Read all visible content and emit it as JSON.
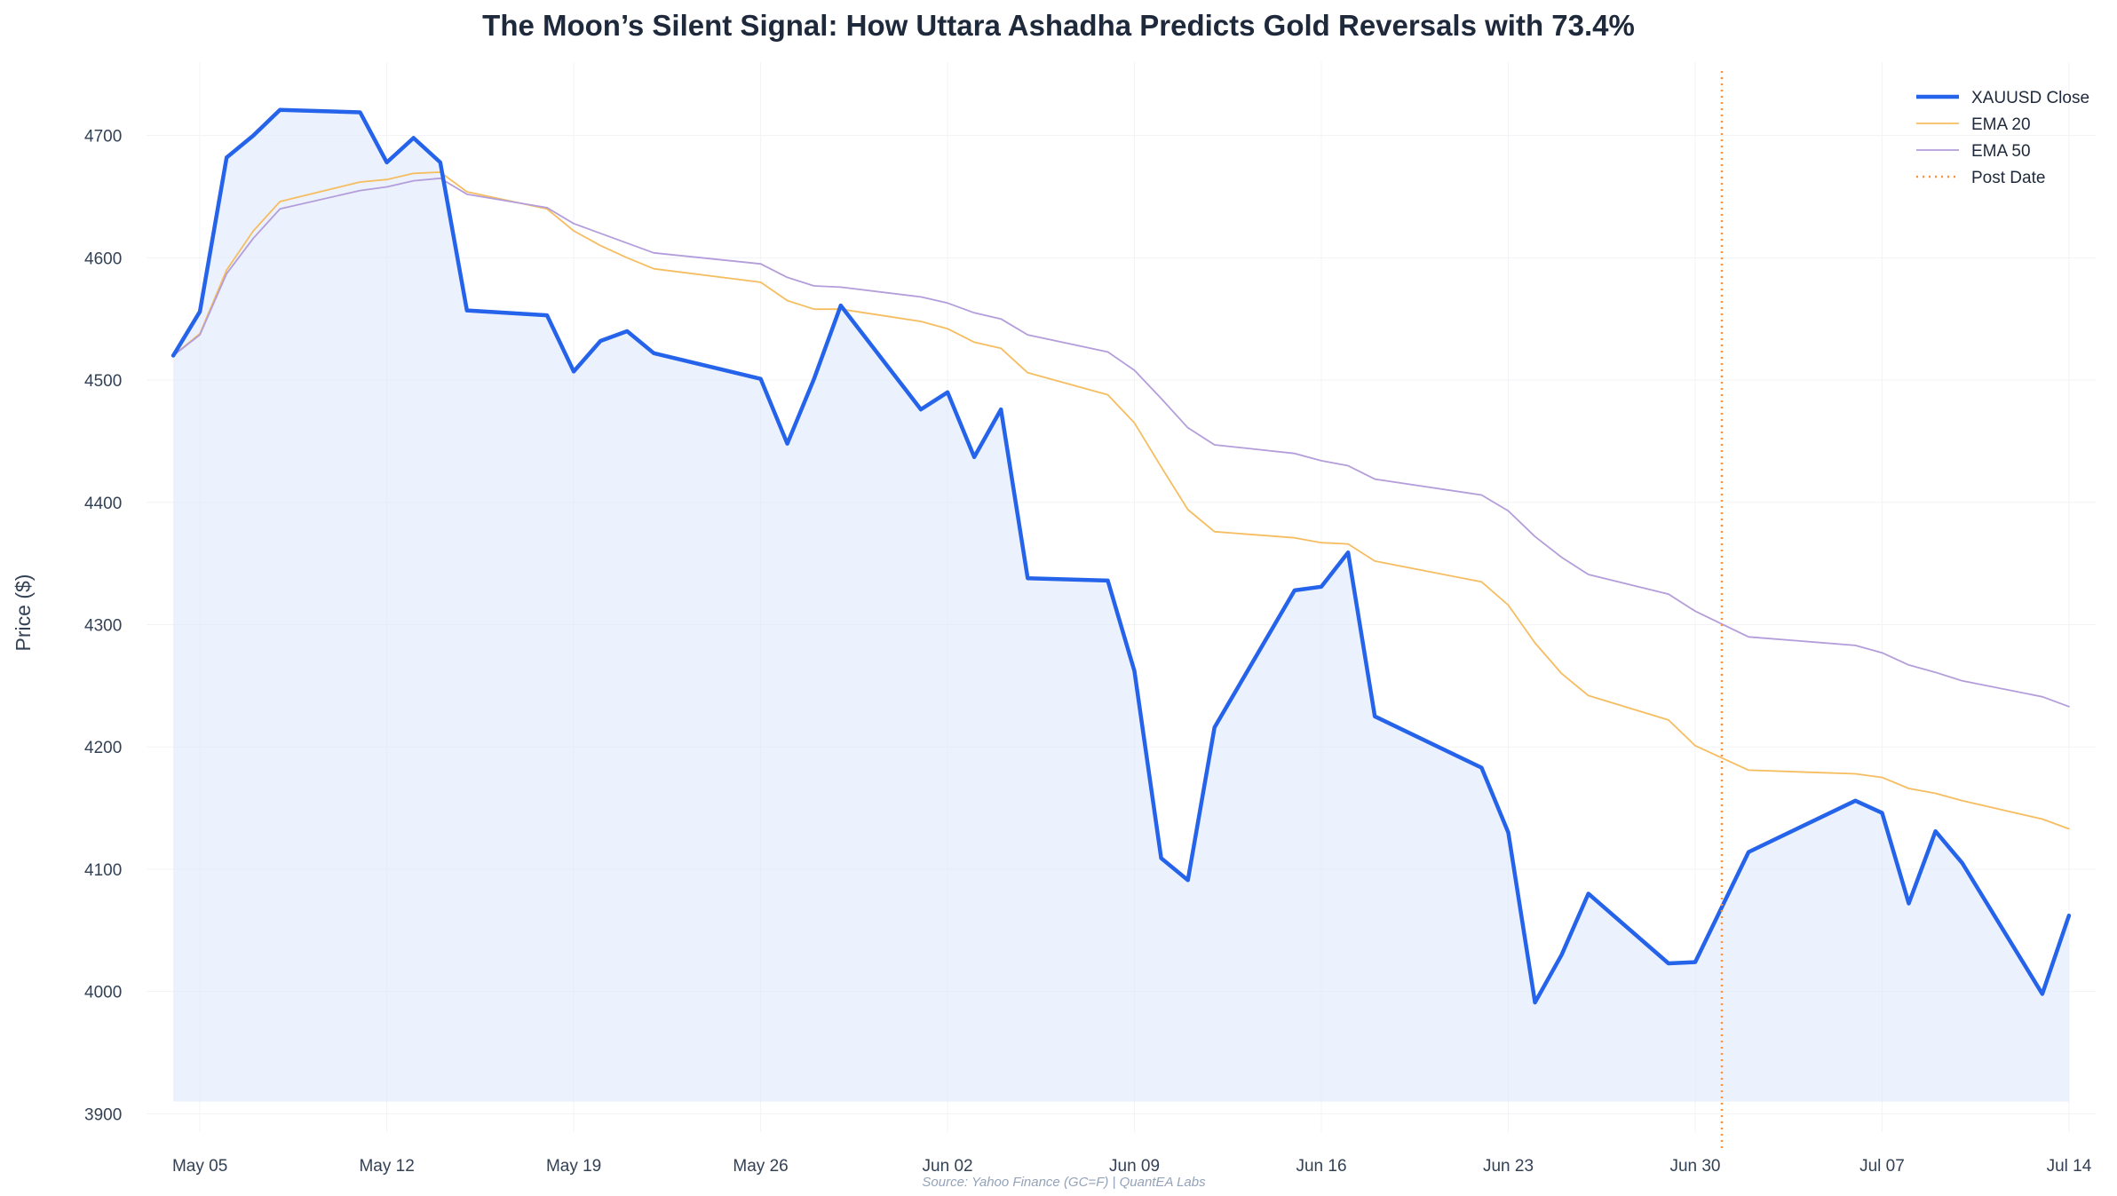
{
  "chart_data": {
    "type": "line",
    "title": "The Moon’s Silent Signal: How Uttara Ashadha Predicts Gold Reversals with 73.4%",
    "ylabel": "Price ($)",
    "xlabel": "",
    "ylim": [
      3885,
      4760
    ],
    "yticks": [
      3900,
      4000,
      4100,
      4200,
      4300,
      4400,
      4500,
      4600,
      4700
    ],
    "xlim": [
      "2025-05-03",
      "2025-07-15"
    ],
    "xticks": [
      {
        "date": "2025-05-05",
        "label": "May 05"
      },
      {
        "date": "2025-05-12",
        "label": "May 12"
      },
      {
        "date": "2025-05-19",
        "label": "May 19"
      },
      {
        "date": "2025-05-26",
        "label": "May 26"
      },
      {
        "date": "2025-06-02",
        "label": "Jun 02"
      },
      {
        "date": "2025-06-09",
        "label": "Jun 09"
      },
      {
        "date": "2025-06-16",
        "label": "Jun 16"
      },
      {
        "date": "2025-06-23",
        "label": "Jun 23"
      },
      {
        "date": "2025-06-30",
        "label": "Jun 30"
      },
      {
        "date": "2025-07-07",
        "label": "Jul 07"
      },
      {
        "date": "2025-07-14",
        "label": "Jul 14"
      }
    ],
    "fill_baseline": 3910,
    "grid": true,
    "legend_position": "top-right",
    "dates": [
      "2025-05-04",
      "2025-05-05",
      "2025-05-06",
      "2025-05-07",
      "2025-05-08",
      "2025-05-11",
      "2025-05-12",
      "2025-05-13",
      "2025-05-14",
      "2025-05-15",
      "2025-05-18",
      "2025-05-19",
      "2025-05-20",
      "2025-05-21",
      "2025-05-22",
      "2025-05-26",
      "2025-05-27",
      "2025-05-28",
      "2025-05-29",
      "2025-06-01",
      "2025-06-02",
      "2025-06-03",
      "2025-06-04",
      "2025-06-05",
      "2025-06-08",
      "2025-06-09",
      "2025-06-10",
      "2025-06-11",
      "2025-06-12",
      "2025-06-15",
      "2025-06-16",
      "2025-06-17",
      "2025-06-18",
      "2025-06-22",
      "2025-06-23",
      "2025-06-24",
      "2025-06-25",
      "2025-06-26",
      "2025-06-29",
      "2025-06-30",
      "2025-07-02",
      "2025-07-06",
      "2025-07-07",
      "2025-07-08",
      "2025-07-09",
      "2025-07-10",
      "2025-07-13",
      "2025-07-14"
    ],
    "series": [
      {
        "name": "XAUUSD Close",
        "color": "#2563eb",
        "width": 4.5,
        "values": [
          4520,
          4556,
          4682,
          4700,
          4721,
          4719,
          4678,
          4698,
          4678,
          4557,
          4553,
          4507,
          4532,
          4540,
          4522,
          4501,
          4448,
          4501,
          4561,
          4476,
          4490,
          4437,
          4476,
          4338,
          4336,
          4262,
          4109,
          4091,
          4216,
          4328,
          4331,
          4359,
          4225,
          4183,
          4130,
          3991,
          4030,
          4080,
          4023,
          4024,
          4114,
          4156,
          4146,
          4072,
          4131,
          4105,
          3998,
          4062
        ]
      },
      {
        "name": "EMA 20",
        "color": "#f6bd60",
        "width": 1.8,
        "values": [
          4520,
          4538,
          4590,
          4622,
          4646,
          4662,
          4664,
          4669,
          4670,
          4654,
          4640,
          4622,
          4610,
          4600,
          4591,
          4580,
          4565,
          4558,
          4558,
          4548,
          4542,
          4531,
          4526,
          4506,
          4488,
          4465,
          4429,
          4394,
          4376,
          4371,
          4367,
          4366,
          4352,
          4335,
          4316,
          4285,
          4260,
          4242,
          4222,
          4201,
          4181,
          4178,
          4175,
          4166,
          4162,
          4156,
          4141,
          4133
        ]
      },
      {
        "name": "EMA 50",
        "color": "#b39ddb",
        "width": 1.8,
        "values": [
          4520,
          4537,
          4587,
          4616,
          4640,
          4655,
          4658,
          4663,
          4665,
          4652,
          4641,
          4628,
          4620,
          4612,
          4604,
          4595,
          4584,
          4577,
          4576,
          4568,
          4563,
          4555,
          4550,
          4537,
          4523,
          4508,
          4485,
          4461,
          4447,
          4440,
          4434,
          4430,
          4419,
          4406,
          4393,
          4372,
          4355,
          4341,
          4325,
          4311,
          4290,
          4283,
          4277,
          4267,
          4261,
          4254,
          4241,
          4233
        ]
      }
    ],
    "post_date": {
      "name": "Post Date",
      "date": "2025-07-01",
      "color": "#fb923c"
    }
  },
  "source": "Source: Yahoo Finance (GC=F) | QuantEA Labs"
}
